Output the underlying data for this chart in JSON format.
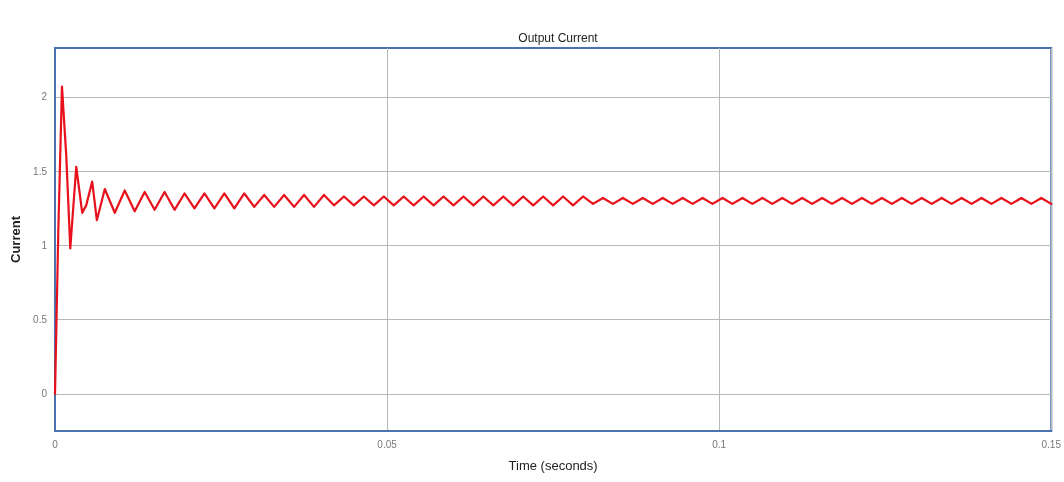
{
  "chart_data": {
    "type": "line",
    "title": "Output Current",
    "xlabel": "Time (seconds)",
    "ylabel": "Current",
    "x": [
      0,
      0.0005,
      0.00105,
      0.0017,
      0.0023,
      0.0032,
      0.0041,
      0.0047,
      0.0056,
      0.0063,
      0.0075,
      0.009,
      0.0105,
      0.012,
      0.0135,
      0.015,
      0.0165,
      0.018,
      0.0195,
      0.021,
      0.0225,
      0.024,
      0.0255,
      0.027,
      0.0285,
      0.03,
      0.0315,
      0.033,
      0.0345,
      0.036,
      0.0375,
      0.039,
      0.0405,
      0.042,
      0.0435,
      0.045,
      0.0465,
      0.048,
      0.0495,
      0.051,
      0.0525,
      0.054,
      0.0555,
      0.057,
      0.0585,
      0.06,
      0.0615,
      0.063,
      0.0645,
      0.066,
      0.0675,
      0.069,
      0.0705,
      0.072,
      0.0735,
      0.075,
      0.0765,
      0.078,
      0.0795,
      0.081,
      0.0825,
      0.084,
      0.0855,
      0.087,
      0.0885,
      0.09,
      0.0915,
      0.093,
      0.0945,
      0.096,
      0.0975,
      0.099,
      0.1005,
      0.102,
      0.1035,
      0.105,
      0.1065,
      0.108,
      0.1095,
      0.111,
      0.1125,
      0.114,
      0.1155,
      0.117,
      0.1185,
      0.12,
      0.1215,
      0.123,
      0.1245,
      0.126,
      0.1275,
      0.129,
      0.1305,
      0.132,
      0.1335,
      0.135,
      0.1365,
      0.138,
      0.1395,
      0.141,
      0.1425,
      0.144,
      0.1455,
      0.147,
      0.1485,
      0.15
    ],
    "series": [
      {
        "color": "#e8101a",
        "values": [
          0,
          1.1,
          2.07,
          1.6,
          0.98,
          1.53,
          1.22,
          1.27,
          1.43,
          1.17,
          1.38,
          1.22,
          1.37,
          1.23,
          1.36,
          1.24,
          1.36,
          1.24,
          1.35,
          1.25,
          1.35,
          1.25,
          1.35,
          1.25,
          1.35,
          1.26,
          1.34,
          1.26,
          1.34,
          1.26,
          1.34,
          1.26,
          1.34,
          1.27,
          1.33,
          1.27,
          1.33,
          1.27,
          1.33,
          1.27,
          1.33,
          1.27,
          1.33,
          1.27,
          1.33,
          1.27,
          1.33,
          1.27,
          1.33,
          1.27,
          1.33,
          1.27,
          1.33,
          1.27,
          1.33,
          1.27,
          1.33,
          1.27,
          1.33,
          1.28,
          1.32,
          1.28,
          1.32,
          1.28,
          1.32,
          1.28,
          1.32,
          1.28,
          1.32,
          1.28,
          1.32,
          1.28,
          1.32,
          1.28,
          1.32,
          1.28,
          1.32,
          1.28,
          1.32,
          1.28,
          1.32,
          1.28,
          1.32,
          1.28,
          1.32,
          1.28,
          1.32,
          1.28,
          1.32,
          1.28,
          1.32,
          1.28,
          1.32,
          1.28,
          1.32,
          1.28,
          1.32,
          1.28,
          1.32,
          1.28,
          1.32,
          1.28,
          1.32,
          1.28,
          1.32,
          1.28
        ]
      }
    ],
    "xlim": [
      0,
      0.15
    ],
    "xticks": [
      0,
      0.05,
      0.1,
      0.15
    ],
    "ylim": [
      -0.25,
      2.33
    ],
    "yticks": [
      0,
      0.5,
      1,
      1.5,
      2
    ],
    "grid": true,
    "marker": "none",
    "line_style": "solid"
  }
}
